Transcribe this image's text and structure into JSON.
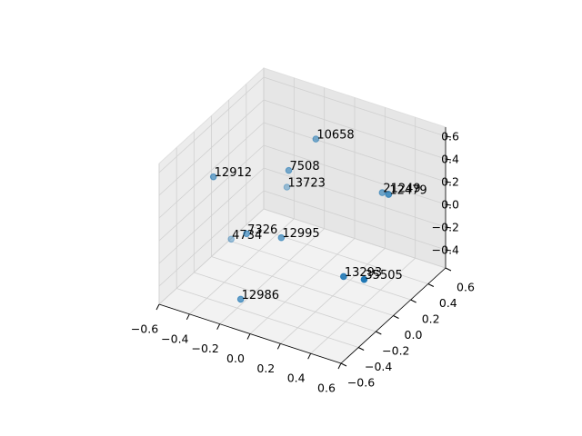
{
  "chart_data": {
    "type": "scatter3d",
    "color": "#1f77b4",
    "x": [
      0.02,
      -0.09,
      -0.24,
      -0.38,
      0.32,
      0.5,
      -0.23,
      -0.47,
      -0.07,
      0.41,
      0.58,
      -0.2
    ],
    "y": [
      0.12,
      0.0,
      0.24,
      -0.36,
      0.36,
      0.12,
      -0.24,
      0.0,
      -0.12,
      -0.24,
      -0.3,
      -0.36
    ],
    "z": [
      0.66,
      0.42,
      0.04,
      0.49,
      0.15,
      0.38,
      -0.03,
      -0.35,
      -0.08,
      -0.13,
      -0.04,
      -0.51
    ],
    "labels": [
      "10658",
      "7508",
      "13723",
      "12912",
      "21249",
      "12479",
      "7326",
      "4734",
      "12995",
      "13293",
      "35505",
      "12986"
    ],
    "xlim": [
      -0.6,
      0.6
    ],
    "ylim": [
      -0.6,
      0.6
    ],
    "zlim": [
      -0.56,
      0.68
    ],
    "xticks": [
      {
        "value": -0.6,
        "label": "−0.6"
      },
      {
        "value": -0.4,
        "label": "−0.4"
      },
      {
        "value": -0.2,
        "label": "−0.2"
      },
      {
        "value": 0.0,
        "label": "0.0"
      },
      {
        "value": 0.2,
        "label": "0.2"
      },
      {
        "value": 0.4,
        "label": "0.4"
      },
      {
        "value": 0.6,
        "label": "0.6"
      }
    ],
    "yticks": [
      {
        "value": -0.6,
        "label": "−0.6"
      },
      {
        "value": -0.4,
        "label": "−0.4"
      },
      {
        "value": -0.2,
        "label": "−0.2"
      },
      {
        "value": 0.0,
        "label": "0.0"
      },
      {
        "value": 0.2,
        "label": "0.2"
      },
      {
        "value": 0.4,
        "label": "0.4"
      },
      {
        "value": 0.6,
        "label": "0.6"
      }
    ],
    "zticks": [
      {
        "value": -0.4,
        "label": "−0.4"
      },
      {
        "value": -0.2,
        "label": "−0.2"
      },
      {
        "value": 0.0,
        "label": "0.0"
      },
      {
        "value": 0.2,
        "label": "0.2"
      },
      {
        "value": 0.4,
        "label": "0.4"
      },
      {
        "value": 0.6,
        "label": "0.6"
      }
    ],
    "grid": true
  }
}
